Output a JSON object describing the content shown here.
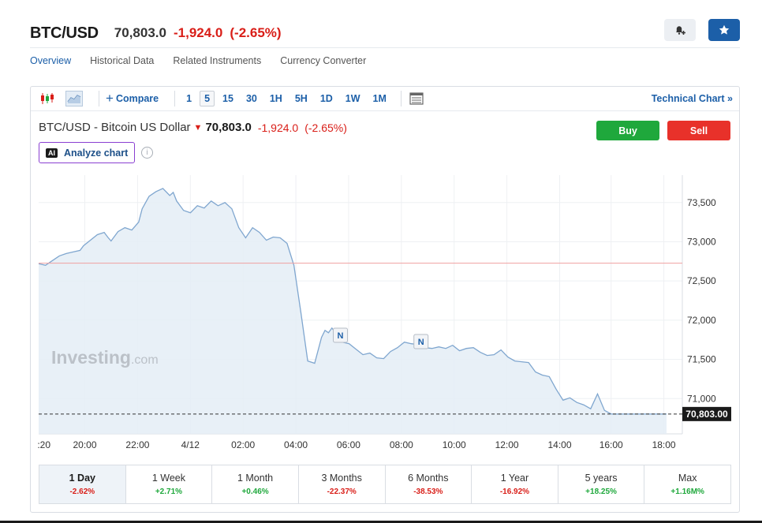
{
  "header": {
    "pair": "BTC/USD",
    "price": "70,803.0",
    "change": "-1,924.0",
    "change_pct": "(-2.65%)"
  },
  "tabs": [
    {
      "label": "Overview",
      "active": true
    },
    {
      "label": "Historical Data",
      "active": false
    },
    {
      "label": "Related Instruments",
      "active": false
    },
    {
      "label": "Currency Converter",
      "active": false
    }
  ],
  "toolbar": {
    "compare_label": "Compare",
    "intervals": [
      "1",
      "5",
      "15",
      "30",
      "1H",
      "5H",
      "1D",
      "1W",
      "1M"
    ],
    "active_interval": "5",
    "technical_chart": "Technical Chart »"
  },
  "subtitle": {
    "name": "BTC/USD - Bitcoin US Dollar",
    "price": "70,803.0",
    "change": "-1,924.0",
    "change_pct": "(-2.65%)"
  },
  "buttons": {
    "buy": "Buy",
    "sell": "Sell",
    "analyze": "Analyze chart",
    "ai": "AI"
  },
  "chart_data": {
    "type": "area",
    "watermark": "Investing.com",
    "x_ticks": [
      ":20",
      "20:00",
      "22:00",
      "4/12",
      "02:00",
      "04:00",
      "06:00",
      "08:00",
      "10:00",
      "12:00",
      "14:00",
      "16:00",
      "18:00"
    ],
    "y_ticks": [
      "73,500",
      "73,000",
      "72,500",
      "72,000",
      "71,500",
      "71,000"
    ],
    "ylim": [
      70550,
      73850
    ],
    "previous_close": 72727,
    "last_price_label": "70,803.00",
    "last_price": 70803,
    "news_markers": [
      "N",
      "N"
    ],
    "series": [
      {
        "x": [
          0,
          0.2,
          0.4,
          0.6,
          0.8,
          1.0,
          1.2,
          1.3,
          1.5,
          1.7,
          1.9,
          2.0,
          2.1,
          2.3,
          2.5,
          2.7,
          2.9,
          3.0,
          3.2,
          3.4,
          3.6,
          3.8,
          3.9,
          4.0,
          4.2,
          4.4,
          4.6,
          4.8,
          5.0,
          5.2,
          5.4,
          5.6,
          5.8,
          6.0,
          6.2,
          6.4,
          6.6,
          6.8,
          7.0,
          7.2,
          7.4,
          7.6,
          7.8,
          8.0,
          8.2,
          8.3,
          8.4,
          8.5,
          8.6,
          8.7,
          8.8,
          9.0,
          9.2,
          9.4,
          9.6,
          9.8,
          10.0,
          10.2,
          10.4,
          10.6,
          10.8,
          11.0,
          11.2,
          11.4,
          11.6,
          11.8,
          12.0,
          12.2,
          12.4,
          12.6,
          12.8,
          13.0,
          13.2,
          13.4,
          13.6,
          13.8,
          14.0,
          14.2,
          14.4,
          14.6,
          14.8,
          15.0,
          15.2,
          15.4,
          15.6,
          15.8,
          16.0,
          16.2,
          16.4,
          16.6,
          16.8,
          17.0,
          17.2,
          17.4,
          17.6,
          17.8,
          18.0,
          18.1,
          18.2
        ],
        "y": [
          72720,
          72700,
          72760,
          72820,
          72850,
          72870,
          72890,
          72950,
          73020,
          73090,
          73120,
          73060,
          73010,
          73130,
          73180,
          73150,
          73250,
          73420,
          73580,
          73640,
          73680,
          73590,
          73630,
          73520,
          73400,
          73370,
          73460,
          73430,
          73520,
          73460,
          73500,
          73420,
          73180,
          73050,
          73180,
          73120,
          73020,
          73060,
          73050,
          72980,
          72700,
          72100,
          71480,
          71450,
          71780,
          71870,
          71840,
          71900,
          71840,
          71800,
          71720,
          71700,
          71630,
          71560,
          71580,
          71520,
          71510,
          71600,
          71650,
          71720,
          71700,
          71690,
          71650,
          71640,
          71660,
          71640,
          71680,
          71610,
          71640,
          71650,
          71590,
          71550,
          71560,
          71620,
          71530,
          71480,
          71470,
          71460,
          71340,
          71300,
          71280,
          71120,
          70980,
          71010,
          70950,
          70920,
          70870,
          71060,
          70850,
          70803,
          70803,
          70803,
          70803,
          70803,
          70803,
          70803,
          70803,
          70803,
          70803
        ],
        "unit_note": ""
      }
    ]
  },
  "periods": [
    {
      "label": "1 Day",
      "value": "-2.62%",
      "dir": "neg",
      "active": true
    },
    {
      "label": "1 Week",
      "value": "+2.71%",
      "dir": "pos",
      "active": false
    },
    {
      "label": "1 Month",
      "value": "+0.46%",
      "dir": "pos",
      "active": false
    },
    {
      "label": "3 Months",
      "value": "-22.37%",
      "dir": "neg",
      "active": false
    },
    {
      "label": "6 Months",
      "value": "-38.53%",
      "dir": "neg",
      "active": false
    },
    {
      "label": "1 Year",
      "value": "-16.92%",
      "dir": "neg",
      "active": false
    },
    {
      "label": "5 years",
      "value": "+18.25%",
      "dir": "pos",
      "active": false
    },
    {
      "label": "Max",
      "value": "+1.16M%",
      "dir": "pos",
      "active": false
    }
  ],
  "colors": {
    "accent": "#1c5fa8",
    "negative": "#d91e18",
    "positive": "#1fa83c",
    "line": "#7fa6cf",
    "fill": "#e4edf6"
  }
}
